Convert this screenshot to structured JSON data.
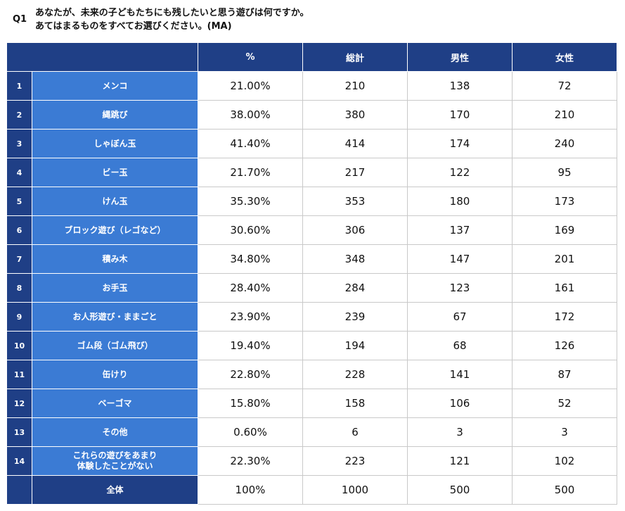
{
  "question": {
    "number": "Q1",
    "line1": "あなたが、未来の子どもたちにも残したいと思う遊びは何ですか。",
    "line2": "あてはまるものをすべてお選びください。(MA)"
  },
  "table": {
    "headers": [
      "%",
      "総計",
      "男性",
      "女性"
    ],
    "rows": [
      {
        "no": "1",
        "label": "メンコ",
        "pct": "21.00%",
        "total": "210",
        "male": "138",
        "female": "72"
      },
      {
        "no": "2",
        "label": "縄跳び",
        "pct": "38.00%",
        "total": "380",
        "male": "170",
        "female": "210"
      },
      {
        "no": "3",
        "label": "しゃぼん玉",
        "pct": "41.40%",
        "total": "414",
        "male": "174",
        "female": "240"
      },
      {
        "no": "4",
        "label": "ビー玉",
        "pct": "21.70%",
        "total": "217",
        "male": "122",
        "female": "95"
      },
      {
        "no": "5",
        "label": "けん玉",
        "pct": "35.30%",
        "total": "353",
        "male": "180",
        "female": "173"
      },
      {
        "no": "6",
        "label": "ブロック遊び（レゴなど）",
        "pct": "30.60%",
        "total": "306",
        "male": "137",
        "female": "169"
      },
      {
        "no": "7",
        "label": "積み木",
        "pct": "34.80%",
        "total": "348",
        "male": "147",
        "female": "201"
      },
      {
        "no": "8",
        "label": "お手玉",
        "pct": "28.40%",
        "total": "284",
        "male": "123",
        "female": "161"
      },
      {
        "no": "9",
        "label": "お人形遊び・ままごと",
        "pct": "23.90%",
        "total": "239",
        "male": "67",
        "female": "172"
      },
      {
        "no": "10",
        "label": "ゴム段（ゴム飛び）",
        "pct": "19.40%",
        "total": "194",
        "male": "68",
        "female": "126"
      },
      {
        "no": "11",
        "label": "缶けり",
        "pct": "22.80%",
        "total": "228",
        "male": "141",
        "female": "87"
      },
      {
        "no": "12",
        "label": "ベーゴマ",
        "pct": "15.80%",
        "total": "158",
        "male": "106",
        "female": "52"
      },
      {
        "no": "13",
        "label": "その他",
        "pct": "0.60%",
        "total": "6",
        "male": "3",
        "female": "3"
      },
      {
        "no": "14",
        "label": "これらの遊びをあまり\n体験したことがない",
        "pct": "22.30%",
        "total": "223",
        "male": "121",
        "female": "102"
      }
    ],
    "total_row": {
      "no": "",
      "label": "全体",
      "pct": "100%",
      "total": "1000",
      "male": "500",
      "female": "500"
    }
  }
}
